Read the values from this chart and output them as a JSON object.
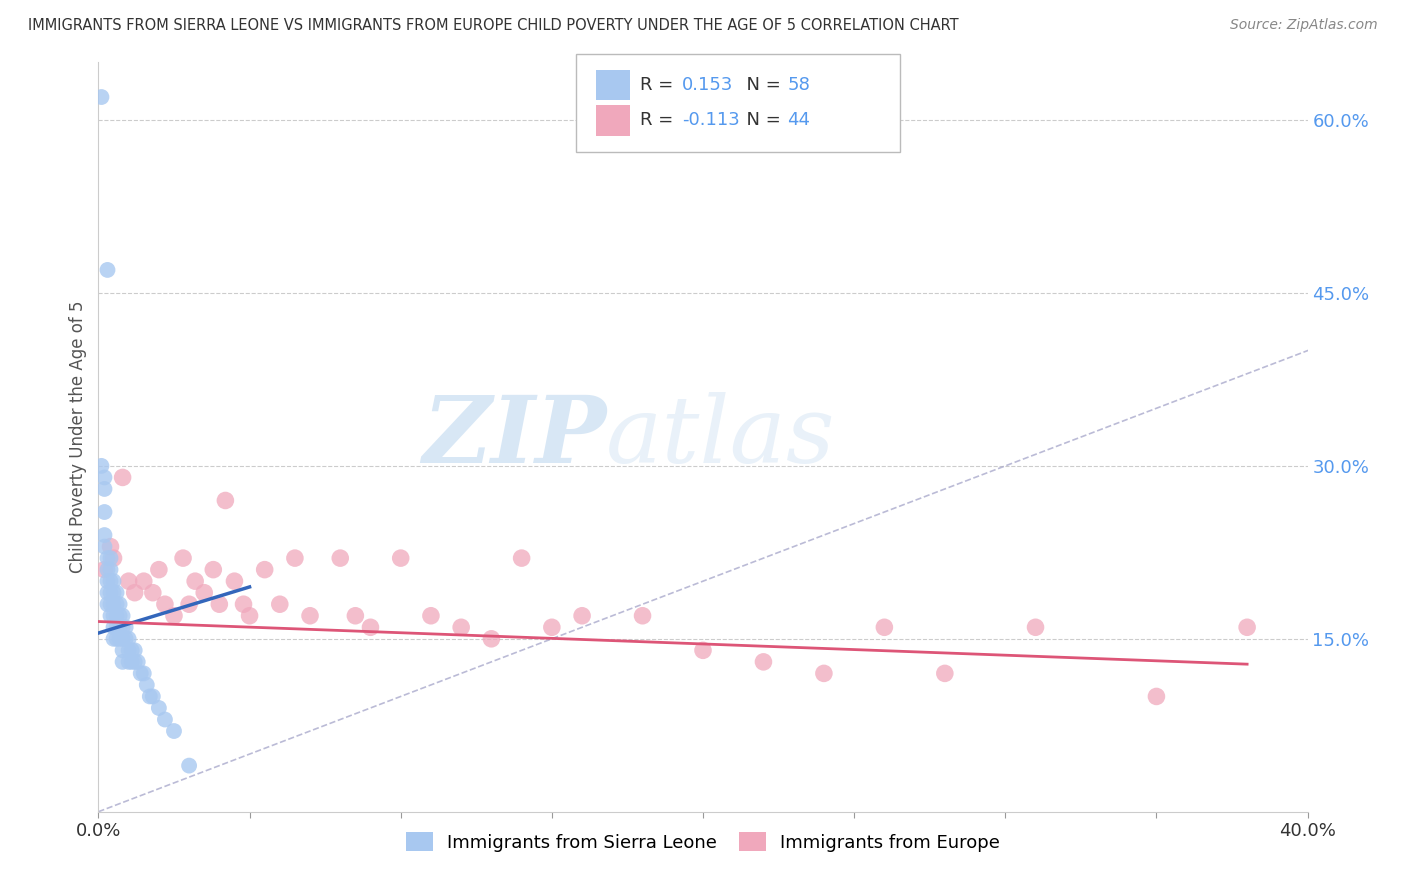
{
  "title": "IMMIGRANTS FROM SIERRA LEONE VS IMMIGRANTS FROM EUROPE CHILD POVERTY UNDER THE AGE OF 5 CORRELATION CHART",
  "source": "Source: ZipAtlas.com",
  "ylabel": "Child Poverty Under the Age of 5",
  "legend_label1": "Immigrants from Sierra Leone",
  "legend_label2": "Immigrants from Europe",
  "R1": 0.153,
  "N1": 58,
  "R2": -0.113,
  "N2": 44,
  "color1": "#a8c8f0",
  "color2": "#f0a8bc",
  "line_color1": "#3366bb",
  "line_color2": "#dd5577",
  "xlim": [
    0.0,
    0.4
  ],
  "ylim": [
    0.0,
    0.65
  ],
  "y_ticks_right": [
    0.15,
    0.3,
    0.45,
    0.6
  ],
  "y_tick_labels_right": [
    "15.0%",
    "30.0%",
    "45.0%",
    "60.0%"
  ],
  "watermark_zip": "ZIP",
  "watermark_atlas": "atlas",
  "background_color": "#ffffff",
  "grid_color": "#cccccc",
  "sl_x": [
    0.001,
    0.001,
    0.002,
    0.002,
    0.002,
    0.002,
    0.002,
    0.003,
    0.003,
    0.003,
    0.003,
    0.003,
    0.003,
    0.004,
    0.004,
    0.004,
    0.004,
    0.004,
    0.004,
    0.005,
    0.005,
    0.005,
    0.005,
    0.005,
    0.005,
    0.006,
    0.006,
    0.006,
    0.006,
    0.006,
    0.007,
    0.007,
    0.007,
    0.007,
    0.008,
    0.008,
    0.008,
    0.008,
    0.008,
    0.009,
    0.009,
    0.01,
    0.01,
    0.01,
    0.011,
    0.011,
    0.012,
    0.012,
    0.013,
    0.014,
    0.015,
    0.016,
    0.017,
    0.018,
    0.02,
    0.022,
    0.025,
    0.03
  ],
  "sl_y": [
    0.62,
    0.3,
    0.29,
    0.28,
    0.26,
    0.24,
    0.23,
    0.47,
    0.22,
    0.21,
    0.2,
    0.19,
    0.18,
    0.22,
    0.21,
    0.2,
    0.19,
    0.18,
    0.17,
    0.2,
    0.19,
    0.18,
    0.17,
    0.16,
    0.15,
    0.19,
    0.18,
    0.17,
    0.16,
    0.15,
    0.18,
    0.17,
    0.16,
    0.15,
    0.17,
    0.16,
    0.15,
    0.14,
    0.13,
    0.16,
    0.15,
    0.15,
    0.14,
    0.13,
    0.14,
    0.13,
    0.14,
    0.13,
    0.13,
    0.12,
    0.12,
    0.11,
    0.1,
    0.1,
    0.09,
    0.08,
    0.07,
    0.04
  ],
  "eu_x": [
    0.002,
    0.004,
    0.005,
    0.008,
    0.01,
    0.012,
    0.015,
    0.018,
    0.02,
    0.022,
    0.025,
    0.028,
    0.03,
    0.032,
    0.035,
    0.038,
    0.04,
    0.042,
    0.045,
    0.048,
    0.05,
    0.055,
    0.06,
    0.065,
    0.07,
    0.08,
    0.085,
    0.09,
    0.1,
    0.11,
    0.12,
    0.13,
    0.14,
    0.15,
    0.16,
    0.18,
    0.2,
    0.22,
    0.24,
    0.26,
    0.28,
    0.31,
    0.35,
    0.38
  ],
  "eu_y": [
    0.21,
    0.23,
    0.22,
    0.29,
    0.2,
    0.19,
    0.2,
    0.19,
    0.21,
    0.18,
    0.17,
    0.22,
    0.18,
    0.2,
    0.19,
    0.21,
    0.18,
    0.27,
    0.2,
    0.18,
    0.17,
    0.21,
    0.18,
    0.22,
    0.17,
    0.22,
    0.17,
    0.16,
    0.22,
    0.17,
    0.16,
    0.15,
    0.22,
    0.16,
    0.17,
    0.17,
    0.14,
    0.13,
    0.12,
    0.16,
    0.12,
    0.16,
    0.1,
    0.16
  ],
  "sl_line_x0": 0.0,
  "sl_line_x1": 0.05,
  "sl_line_y0": 0.155,
  "sl_line_y1": 0.195,
  "eu_line_x0": 0.0,
  "eu_line_x1": 0.38,
  "eu_line_y0": 0.165,
  "eu_line_y1": 0.128
}
